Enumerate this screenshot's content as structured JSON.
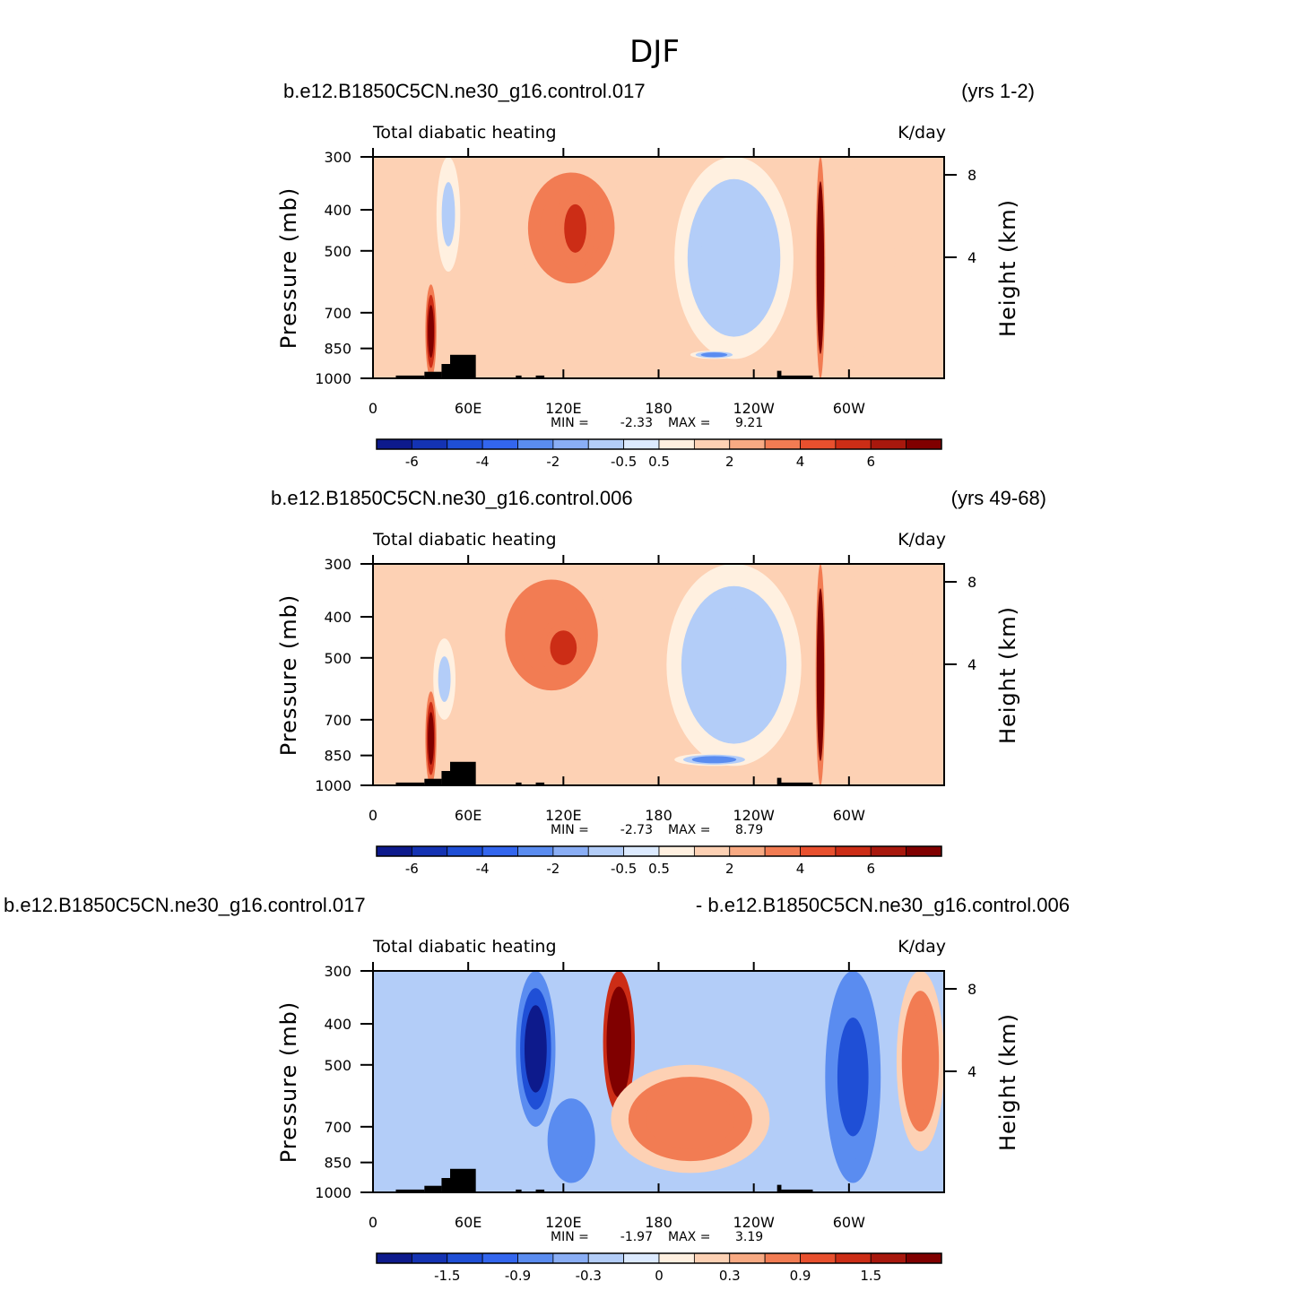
{
  "figure_title": "DJF",
  "panels": [
    {
      "case_left": "b.e12.B1850C5CN.ne30_g16.control.017",
      "case_right": "(yrs 1-2)",
      "chart_data": {
        "type": "heatmap",
        "title": "Total diabatic heating",
        "units": "K/day",
        "xlabel": "",
        "ylabel": "Pressure (mb)",
        "y2label": "Height (km)",
        "x_ticks": [
          "0",
          "60E",
          "120E",
          "180",
          "120W",
          "60W"
        ],
        "x_range_deg": [
          0,
          360
        ],
        "y_ticks": [
          "300",
          "400",
          "500",
          "700",
          "850",
          "1000"
        ],
        "y_range_mb": [
          1000,
          300
        ],
        "y2_ticks": [
          "8",
          "4"
        ],
        "min_label": "MIN =",
        "min": "-2.33",
        "max_label": "MAX =",
        "max": "9.21",
        "colorbar_levels": [
          "-6",
          "-4",
          "-2",
          "-0.5",
          "0.5",
          "2",
          "4",
          "6"
        ],
        "features": [
          {
            "name": "heating-west-pacific-upper",
            "lon": [
              90,
              160
            ],
            "p": [
              300,
              650
            ],
            "value": 3.5
          },
          {
            "name": "heating-core-120E",
            "lon": [
              115,
              140
            ],
            "p": [
              350,
              560
            ],
            "value": 5.2
          },
          {
            "name": "cooling-east-pacific",
            "lon": [
              190,
              265
            ],
            "p": [
              300,
              900
            ],
            "value": -1.5
          },
          {
            "name": "cooling-east-pacific-low",
            "lon": [
              200,
              230
            ],
            "p": [
              860,
              900
            ],
            "value": -2.3
          },
          {
            "name": "heating-andes-column",
            "lon": [
              279,
              285
            ],
            "p": [
              300,
              1000
            ],
            "value": 9.2
          },
          {
            "name": "heating-africa-column",
            "lon": [
              33,
              40
            ],
            "p": [
              600,
              1000
            ],
            "value": 7.0
          },
          {
            "name": "heating-south-america",
            "lon": [
              290,
              340
            ],
            "p": [
              300,
              900
            ],
            "value": 2.0
          },
          {
            "name": "cooling-east-africa-upper",
            "lon": [
              40,
              55
            ],
            "p": [
              300,
              560
            ],
            "value": -1.0
          }
        ]
      }
    },
    {
      "case_left": "b.e12.B1850C5CN.ne30_g16.control.006",
      "case_right": "(yrs 49-68)",
      "chart_data": {
        "type": "heatmap",
        "title": "Total diabatic heating",
        "units": "K/day",
        "xlabel": "",
        "ylabel": "Pressure (mb)",
        "y2label": "Height (km)",
        "x_ticks": [
          "0",
          "60E",
          "120E",
          "180",
          "120W",
          "60W"
        ],
        "x_range_deg": [
          0,
          360
        ],
        "y_ticks": [
          "300",
          "400",
          "500",
          "700",
          "850",
          "1000"
        ],
        "y_range_mb": [
          1000,
          300
        ],
        "y2_ticks": [
          "8",
          "4"
        ],
        "min_label": "MIN =",
        "min": "-2.73",
        "max_label": "MAX =",
        "max": "8.79",
        "colorbar_levels": [
          "-6",
          "-4",
          "-2",
          "-0.5",
          "0.5",
          "2",
          "4",
          "6"
        ],
        "features": [
          {
            "name": "heating-west-pacific-upper",
            "lon": [
              75,
              150
            ],
            "p": [
              300,
              650
            ],
            "value": 3.0
          },
          {
            "name": "heating-core-120E",
            "lon": [
              105,
              135
            ],
            "p": [
              400,
              560
            ],
            "value": 4.5
          },
          {
            "name": "cooling-east-pacific",
            "lon": [
              185,
              270
            ],
            "p": [
              300,
              900
            ],
            "value": -1.5
          },
          {
            "name": "cooling-east-pacific-low",
            "lon": [
              190,
              240
            ],
            "p": [
              840,
              900
            ],
            "value": -2.7
          },
          {
            "name": "heating-andes-column",
            "lon": [
              279,
              285
            ],
            "p": [
              300,
              1000
            ],
            "value": 8.8
          },
          {
            "name": "heating-africa-column",
            "lon": [
              33,
              40
            ],
            "p": [
              600,
              1000
            ],
            "value": 6.5
          },
          {
            "name": "heating-south-america",
            "lon": [
              290,
              340
            ],
            "p": [
              300,
              900
            ],
            "value": 2.0
          },
          {
            "name": "cooling-east-africa-upper",
            "lon": [
              38,
              52
            ],
            "p": [
              450,
              700
            ],
            "value": -1.0
          }
        ]
      }
    },
    {
      "case_left": "b.e12.B1850C5CN.ne30_g16.control.017",
      "case_right": "- b.e12.B1850C5CN.ne30_g16.control.006",
      "chart_data": {
        "type": "heatmap",
        "title": "Total diabatic heating",
        "units": "K/day",
        "xlabel": "",
        "ylabel": "Pressure (mb)",
        "y2label": "Height (km)",
        "x_ticks": [
          "0",
          "60E",
          "120E",
          "180",
          "120W",
          "60W"
        ],
        "x_range_deg": [
          0,
          360
        ],
        "y_ticks": [
          "300",
          "400",
          "500",
          "700",
          "850",
          "1000"
        ],
        "y_range_mb": [
          1000,
          300
        ],
        "y2_ticks": [
          "8",
          "4"
        ],
        "min_label": "MIN =",
        "min": "-1.97",
        "max_label": "MAX =",
        "max": "3.19",
        "colorbar_levels": [
          "-1.5",
          "-0.9",
          "-0.3",
          "0",
          "0.3",
          "0.9",
          "1.5"
        ],
        "features": [
          {
            "name": "positive-145E",
            "lon": [
              145,
              165
            ],
            "p": [
              300,
              650
            ],
            "value": 3.2
          },
          {
            "name": "negative-100E",
            "lon": [
              90,
              115
            ],
            "p": [
              300,
              700
            ],
            "value": -1.9
          },
          {
            "name": "positive-west-pacific",
            "lon": [
              150,
              250
            ],
            "p": [
              500,
              900
            ],
            "value": 0.6
          },
          {
            "name": "negative-south-america",
            "lon": [
              285,
              320
            ],
            "p": [
              300,
              950
            ],
            "value": -0.9
          },
          {
            "name": "positive-atlantic",
            "lon": [
              330,
              360
            ],
            "p": [
              300,
              800
            ],
            "value": 0.8
          },
          {
            "name": "negative-110E-low",
            "lon": [
              110,
              140
            ],
            "p": [
              600,
              950
            ],
            "value": -0.8
          }
        ]
      }
    }
  ]
}
